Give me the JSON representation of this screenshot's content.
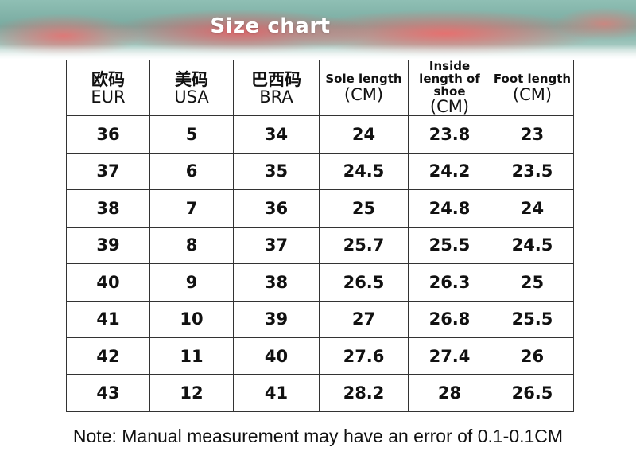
{
  "banner": {
    "title": "Size chart"
  },
  "table": {
    "headers": [
      {
        "top": "欧码",
        "bottom": "EUR"
      },
      {
        "top": "美码",
        "bottom": "USA"
      },
      {
        "top": "巴西码",
        "bottom": "BRA"
      },
      {
        "top": "Sole length",
        "bottom": "(CM)"
      },
      {
        "top": "Inside length of shoe",
        "bottom": "(CM)"
      },
      {
        "top": "Foot length",
        "bottom": "(CM)"
      }
    ],
    "rows": [
      [
        "36",
        "5",
        "34",
        "24",
        "23.8",
        "23"
      ],
      [
        "37",
        "6",
        "35",
        "24.5",
        "24.2",
        "23.5"
      ],
      [
        "38",
        "7",
        "36",
        "25",
        "24.8",
        "24"
      ],
      [
        "39",
        "8",
        "37",
        "25.7",
        "25.5",
        "24.5"
      ],
      [
        "40",
        "9",
        "38",
        "26.5",
        "26.3",
        "25"
      ],
      [
        "41",
        "10",
        "39",
        "27",
        "26.8",
        "25.5"
      ],
      [
        "42",
        "11",
        "40",
        "27.6",
        "27.4",
        "26"
      ],
      [
        "43",
        "12",
        "41",
        "28.2",
        "28",
        "26.5"
      ]
    ]
  },
  "note": "Note: Manual measurement may have an error of 0.1-0.1CM"
}
